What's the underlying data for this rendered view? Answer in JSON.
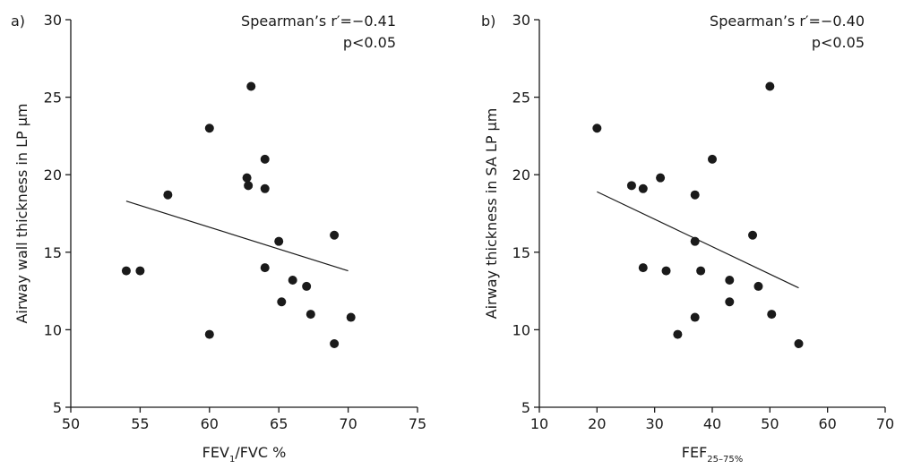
{
  "chart_data": [
    {
      "type": "scatter",
      "panel_label": "a)",
      "ylabel": "Airway wall thickness in LP µm",
      "xlabel": {
        "main": "FEV",
        "sub": "1",
        "suffix": "/FVC %"
      },
      "xlim": [
        50,
        75
      ],
      "ylim": [
        5,
        30
      ],
      "xticks": [
        50,
        55,
        60,
        65,
        70,
        75
      ],
      "yticks": [
        5,
        10,
        15,
        20,
        25,
        30
      ],
      "annotation": [
        "Spearman’s r′=−0.41",
        "p<0.05"
      ],
      "points": [
        {
          "x": 54,
          "y": 13.8
        },
        {
          "x": 55,
          "y": 13.8
        },
        {
          "x": 57,
          "y": 18.7
        },
        {
          "x": 60,
          "y": 23.0
        },
        {
          "x": 60,
          "y": 9.7
        },
        {
          "x": 62.7,
          "y": 19.8
        },
        {
          "x": 62.8,
          "y": 19.3
        },
        {
          "x": 63,
          "y": 25.7
        },
        {
          "x": 64,
          "y": 21.0
        },
        {
          "x": 64,
          "y": 19.1
        },
        {
          "x": 64,
          "y": 14.0
        },
        {
          "x": 65,
          "y": 15.7
        },
        {
          "x": 65.2,
          "y": 11.8
        },
        {
          "x": 66,
          "y": 13.2
        },
        {
          "x": 67,
          "y": 12.8
        },
        {
          "x": 67.3,
          "y": 11.0
        },
        {
          "x": 69,
          "y": 16.1
        },
        {
          "x": 69,
          "y": 9.1
        },
        {
          "x": 70.2,
          "y": 10.8
        }
      ],
      "trend_line": {
        "x": [
          54,
          70
        ],
        "y": [
          18.3,
          13.8
        ]
      }
    },
    {
      "type": "scatter",
      "panel_label": "b)",
      "ylabel": "Airway thickness in SA LP µm",
      "xlabel": {
        "main": "FEF",
        "sub": "25–75%",
        "suffix": ""
      },
      "xlim": [
        10,
        70
      ],
      "ylim": [
        5,
        30
      ],
      "xticks": [
        10,
        20,
        30,
        40,
        50,
        60,
        70
      ],
      "yticks": [
        5,
        10,
        15,
        20,
        25,
        30
      ],
      "annotation": [
        "Spearman’s r′=−0.40",
        "p<0.05"
      ],
      "points": [
        {
          "x": 20,
          "y": 23.0
        },
        {
          "x": 26,
          "y": 19.3
        },
        {
          "x": 28,
          "y": 19.1
        },
        {
          "x": 28,
          "y": 14.0
        },
        {
          "x": 31,
          "y": 19.8
        },
        {
          "x": 32,
          "y": 13.8
        },
        {
          "x": 34,
          "y": 9.7
        },
        {
          "x": 37,
          "y": 18.7
        },
        {
          "x": 37,
          "y": 15.7
        },
        {
          "x": 37,
          "y": 10.8
        },
        {
          "x": 38,
          "y": 13.8
        },
        {
          "x": 40,
          "y": 21.0
        },
        {
          "x": 43,
          "y": 13.2
        },
        {
          "x": 43,
          "y": 11.8
        },
        {
          "x": 47,
          "y": 16.1
        },
        {
          "x": 48,
          "y": 12.8
        },
        {
          "x": 50,
          "y": 25.7
        },
        {
          "x": 50.3,
          "y": 11.0
        },
        {
          "x": 55,
          "y": 9.1
        }
      ],
      "trend_line": {
        "x": [
          20,
          55
        ],
        "y": [
          18.9,
          12.7
        ]
      }
    }
  ]
}
